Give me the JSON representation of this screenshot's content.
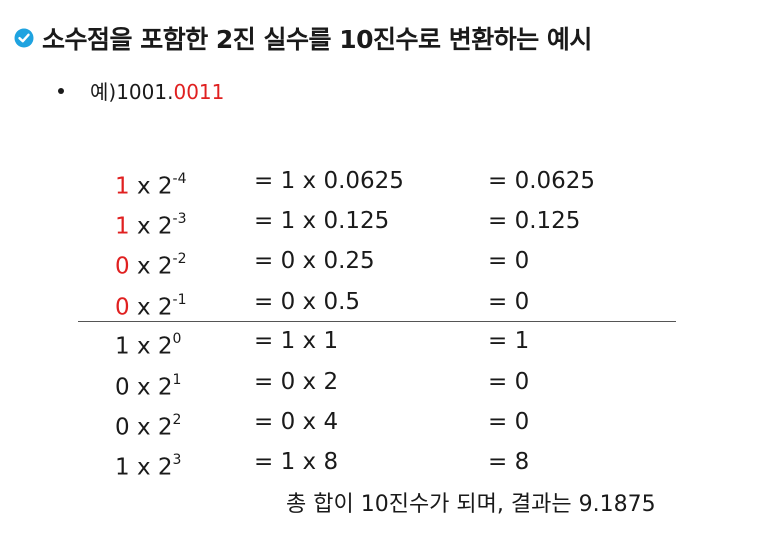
{
  "title": {
    "text": "소수점을 포함한 2진 실수를 10진수로 변환하는 예시",
    "icon": "check-circle-icon",
    "icon_color": "#1fa3e0"
  },
  "example": {
    "prefix": "예) ",
    "integer_part": "1001.",
    "fraction_part": "0011",
    "fraction_color": "#e02020"
  },
  "rows": [
    {
      "digit": "1",
      "digit_red": true,
      "times": " x 2",
      "exp": "-4",
      "expr": "= 1 x 0.0625",
      "result": "= 0.0625"
    },
    {
      "digit": "1",
      "digit_red": true,
      "times": " x 2",
      "exp": "-3",
      "expr": "= 1 x 0.125",
      "result": "= 0.125"
    },
    {
      "digit": "0",
      "digit_red": true,
      "times": " x 2",
      "exp": "-2",
      "expr": "= 0 x 0.25",
      "result": "= 0"
    },
    {
      "digit": "0",
      "digit_red": true,
      "times": " x 2",
      "exp": "-1",
      "expr": "= 0 x 0.5",
      "result": "= 0"
    },
    {
      "digit": "1",
      "digit_red": false,
      "times": " x 2",
      "exp": "0",
      "expr": "= 1 x 1",
      "result": "= 1"
    },
    {
      "digit": "0",
      "digit_red": false,
      "times": " x 2",
      "exp": "1",
      "expr": "= 0 x 2",
      "result": "= 0"
    },
    {
      "digit": "0",
      "digit_red": false,
      "times": " x 2",
      "exp": "2",
      "expr": "= 0 x 4",
      "result": "= 0"
    },
    {
      "digit": "1",
      "digit_red": false,
      "times": " x 2",
      "exp": "3",
      "expr": "= 1 x 8",
      "result": "= 8"
    }
  ],
  "summary": "총 합이 10진수가 되며, 결과는 9.1875"
}
